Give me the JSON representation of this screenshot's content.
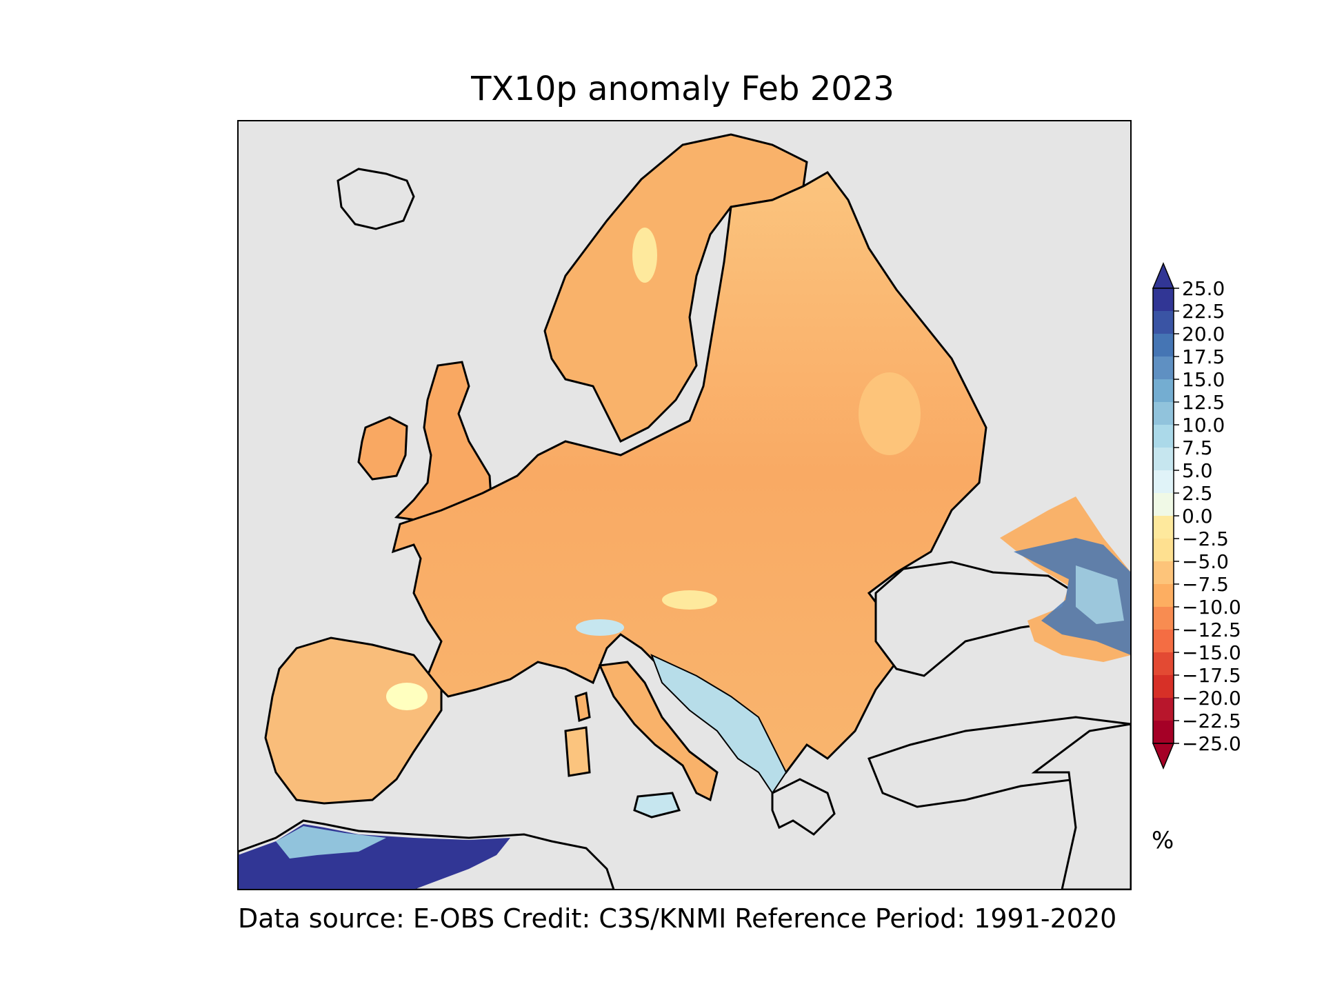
{
  "title": "TX10p anomaly Feb 2023",
  "footer": "Data source: E-OBS  Credit: C3S/KNMI  Reference Period: 1991-2020",
  "colorbar": {
    "unit_label": "%",
    "min": -25.0,
    "max": 25.0,
    "ticks": [
      "25.0",
      "22.5",
      "20.0",
      "17.5",
      "15.0",
      "12.5",
      "10.0",
      "7.5",
      "5.0",
      "2.5",
      "0.0",
      "−2.5",
      "−5.0",
      "−7.5",
      "−10.0",
      "−12.5",
      "−15.0",
      "−17.5",
      "−20.0",
      "−22.5",
      "−25.0"
    ],
    "colors_top_to_bottom": [
      "#313695",
      "#3a54a4",
      "#4575b4",
      "#5f90c2",
      "#74add1",
      "#91c3dc",
      "#abd9e9",
      "#c6e6ef",
      "#e0f3f8",
      "#f0f9e6",
      "#ffffbf",
      "#fee99d",
      "#fee090",
      "#fdc47a",
      "#fdae61",
      "#f88c51",
      "#f46d43",
      "#e34a33",
      "#d73027",
      "#b8162c",
      "#a50026"
    ],
    "extend_top_color": "#313695",
    "extend_bottom_color": "#a50026"
  },
  "map": {
    "ocean_color": "#e5e5e5",
    "coast_color": "#000000",
    "dominant_land_color": "#f9b26a"
  }
}
